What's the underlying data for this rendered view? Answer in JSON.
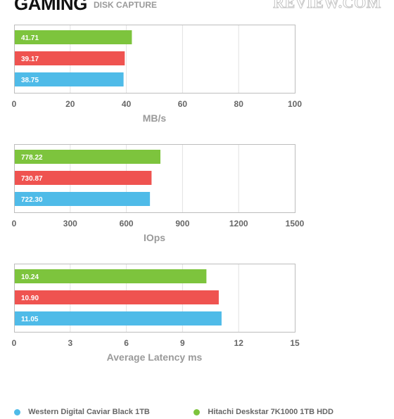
{
  "header": {
    "title": "GAMING",
    "subtitle": "DISK CAPTURE",
    "logo_text": "REVIEW.COM"
  },
  "colors": {
    "green": "#7dc43d",
    "red": "#ef5350",
    "blue": "#4fbbe8",
    "grid": "#e2e2e2",
    "frame": "#bdbdbd"
  },
  "chart_data": [
    {
      "type": "bar",
      "orientation": "horizontal",
      "xlabel": "MB/s",
      "xlim": [
        0,
        100
      ],
      "ticks": [
        "0",
        "20",
        "40",
        "60",
        "80",
        "100"
      ],
      "grid": true,
      "series": [
        {
          "value": 41.71,
          "label": "41.71",
          "color": "green"
        },
        {
          "value": 39.17,
          "label": "39.17",
          "color": "red"
        },
        {
          "value": 38.75,
          "label": "38.75",
          "color": "blue"
        }
      ]
    },
    {
      "type": "bar",
      "orientation": "horizontal",
      "xlabel": "IOps",
      "xlim": [
        0,
        1500
      ],
      "ticks": [
        "0",
        "300",
        "600",
        "900",
        "1200",
        "1500"
      ],
      "grid": true,
      "series": [
        {
          "value": 778.22,
          "label": "778.22",
          "color": "green"
        },
        {
          "value": 730.87,
          "label": "730.87",
          "color": "red"
        },
        {
          "value": 722.3,
          "label": "722.30",
          "color": "blue"
        }
      ]
    },
    {
      "type": "bar",
      "orientation": "horizontal",
      "xlabel": "Average Latency ms",
      "xlim": [
        0,
        15
      ],
      "ticks": [
        "0",
        "3",
        "6",
        "9",
        "12",
        "15"
      ],
      "grid": true,
      "series": [
        {
          "value": 10.24,
          "label": "10.24",
          "color": "green"
        },
        {
          "value": 10.9,
          "label": "10.90",
          "color": "red"
        },
        {
          "value": 11.05,
          "label": "11.05",
          "color": "blue"
        }
      ]
    }
  ],
  "legend": [
    {
      "label": "Western Digital Caviar Black 1TB",
      "color": "blue"
    },
    {
      "label": "Hitachi Deskstar 7K1000 1TB HDD",
      "color": "green"
    }
  ]
}
